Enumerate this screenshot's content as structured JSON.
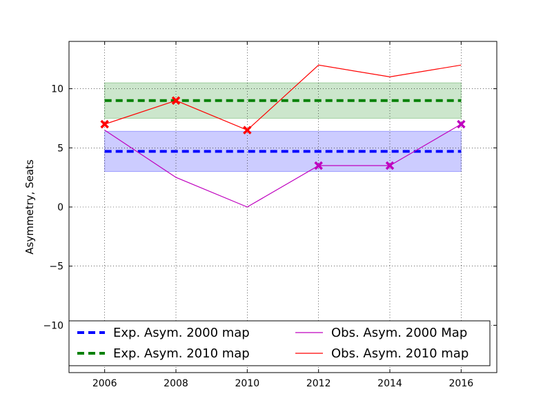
{
  "chart_data": {
    "type": "line",
    "title": "",
    "xlabel": "",
    "ylabel": "Asymmetry, Seats",
    "xlim": [
      2005,
      2017
    ],
    "ylim": [
      -14,
      14
    ],
    "xticks": [
      2006,
      2008,
      2010,
      2012,
      2014,
      2016
    ],
    "yticks": [
      -10,
      -5,
      0,
      5,
      10
    ],
    "xtick_labels": [
      "2006",
      "2008",
      "2010",
      "2012",
      "2014",
      "2016"
    ],
    "ytick_labels": [
      "−10",
      "−5",
      "0",
      "5",
      "10"
    ],
    "grid": true,
    "legend_position": "lower-center",
    "bands": [
      {
        "series": "Exp. Asym. 2000 map",
        "x": [
          2006,
          2016
        ],
        "y_low": 3.0,
        "y_high": 6.4,
        "color": "#0000ff",
        "opacity": 0.2
      },
      {
        "series": "Exp. Asym. 2010 map",
        "x": [
          2006,
          2016
        ],
        "y_low": 7.5,
        "y_high": 10.5,
        "color": "#008000",
        "opacity": 0.2
      }
    ],
    "series": [
      {
        "name": "Exp. Asym. 2000 map",
        "style": "dashed",
        "color": "#0000ff",
        "x": [
          2006,
          2016
        ],
        "y": [
          4.7,
          4.7
        ]
      },
      {
        "name": "Exp. Asym. 2010 map",
        "style": "dashed",
        "color": "#008000",
        "x": [
          2006,
          2016
        ],
        "y": [
          9.0,
          9.0
        ]
      },
      {
        "name": "Obs. Asym. 2000 Map",
        "style": "solid",
        "color": "#bf00bf",
        "x": [
          2006,
          2008,
          2010,
          2012,
          2014,
          2016
        ],
        "y": [
          6.5,
          2.5,
          0.0,
          3.5,
          3.5,
          7.0
        ],
        "markers": [
          2012,
          2014,
          2016
        ]
      },
      {
        "name": "Obs. Asym. 2010 map",
        "style": "solid",
        "color": "#ff0000",
        "x": [
          2006,
          2008,
          2010,
          2012,
          2014,
          2016
        ],
        "y": [
          7.0,
          9.0,
          6.5,
          12.0,
          11.0,
          12.0
        ],
        "markers": [
          2006,
          2008,
          2010
        ]
      }
    ]
  }
}
